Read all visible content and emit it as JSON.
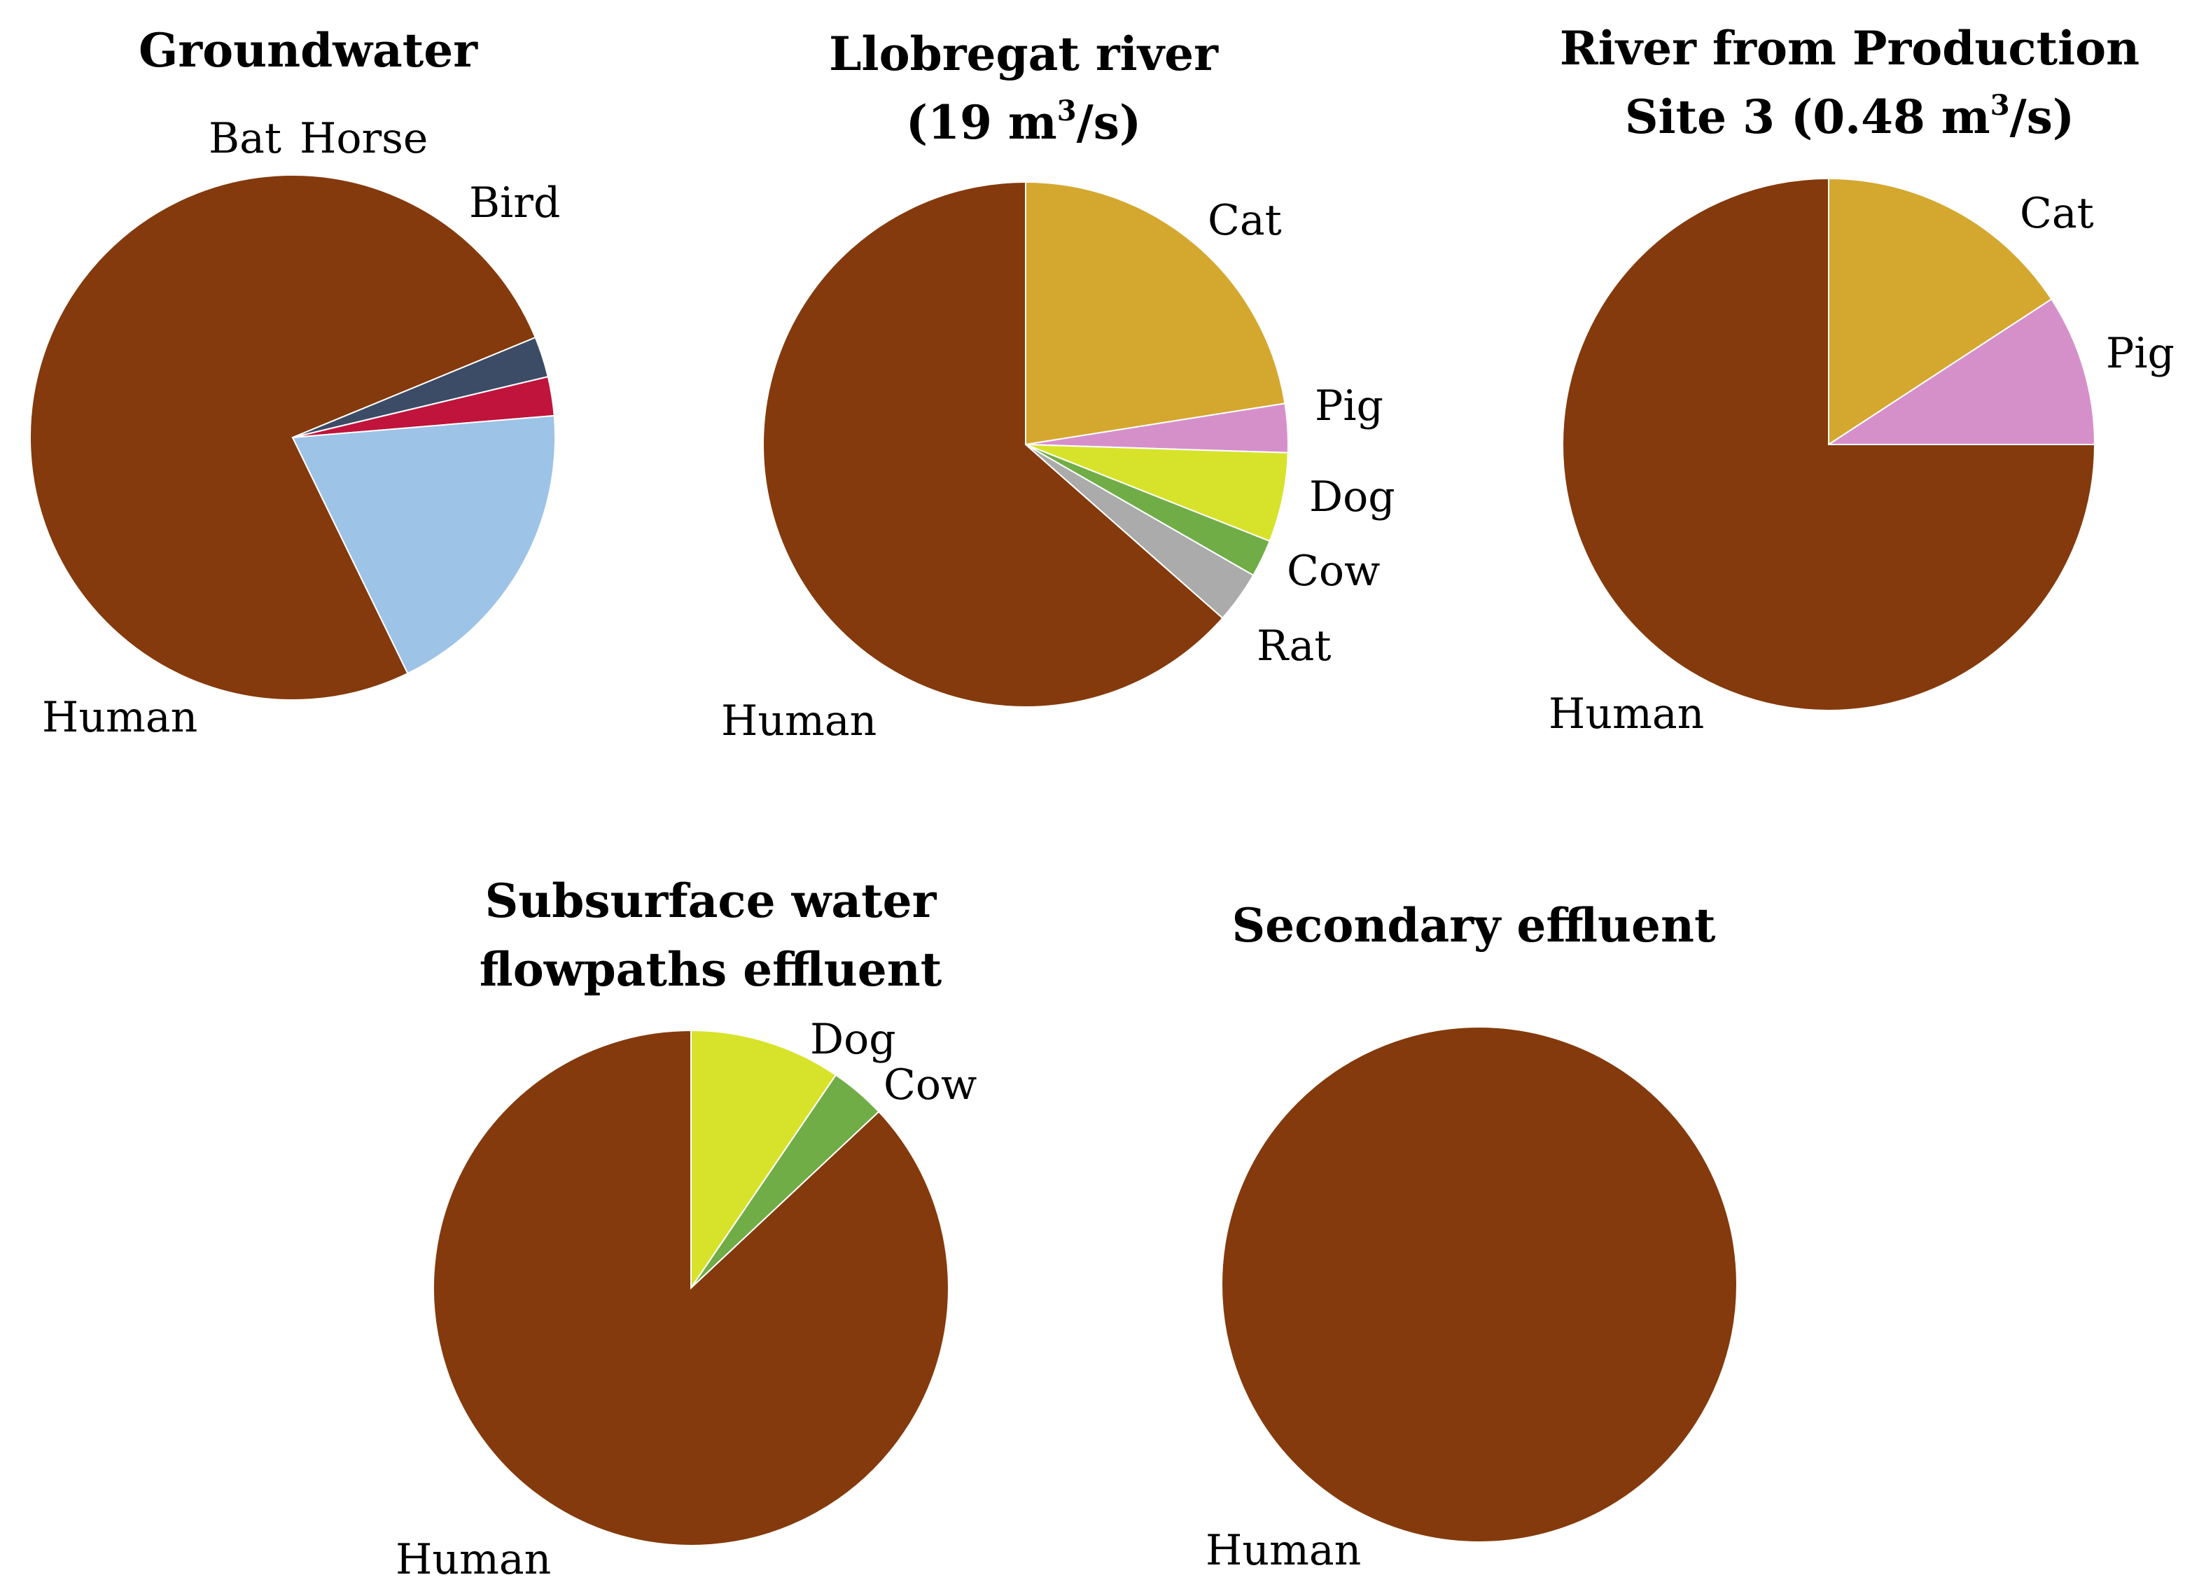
{
  "chart_data": [
    {
      "type": "pie",
      "title_lines": [
        "Groundwater"
      ],
      "slices": [
        {
          "label": "Human",
          "value": 76.0,
          "color": "#843A0C"
        },
        {
          "label": "Bat",
          "value": 2.5,
          "color": "#3C4B66"
        },
        {
          "label": "Horse",
          "value": 2.4,
          "color": "#C0143C"
        },
        {
          "label": "Bird",
          "value": 19.1,
          "color": "#9DC3E6"
        }
      ]
    },
    {
      "type": "pie",
      "title_lines": [
        "Llobregat river",
        "(19 m3/s)"
      ],
      "slices": [
        {
          "label": "Cat",
          "value": 22.5,
          "color": "#D4A72F"
        },
        {
          "label": "Pig",
          "value": 3.0,
          "color": "#D590C9"
        },
        {
          "label": "Dog",
          "value": 5.5,
          "color": "#D7E32B"
        },
        {
          "label": "Cow",
          "value": 2.3,
          "color": "#70AD47"
        },
        {
          "label": "Rat",
          "value": 3.2,
          "color": "#ABABAB"
        },
        {
          "label": "Human",
          "value": 63.5,
          "color": "#843A0C"
        }
      ]
    },
    {
      "type": "pie",
      "title_lines": [
        "River from Production",
        "Site 3 (0.48 m3/s)"
      ],
      "slices": [
        {
          "label": "Cat",
          "value": 15.8,
          "color": "#D4A72F"
        },
        {
          "label": "Pig",
          "value": 9.2,
          "color": "#D590C9"
        },
        {
          "label": "Human",
          "value": 75.0,
          "color": "#843A0C"
        }
      ]
    },
    {
      "type": "pie",
      "title_lines": [
        "Subsurface water",
        "flowpaths effluent"
      ],
      "slices": [
        {
          "label": "Dog",
          "value": 9.5,
          "color": "#D7E32B"
        },
        {
          "label": "Cow",
          "value": 3.5,
          "color": "#70AD47"
        },
        {
          "label": "Human",
          "value": 87.0,
          "color": "#843A0C"
        }
      ]
    },
    {
      "type": "pie",
      "title_lines": [
        "Secondary effluent"
      ],
      "slices": [
        {
          "label": "Human",
          "value": 100,
          "color": "#843A0C"
        }
      ]
    }
  ]
}
